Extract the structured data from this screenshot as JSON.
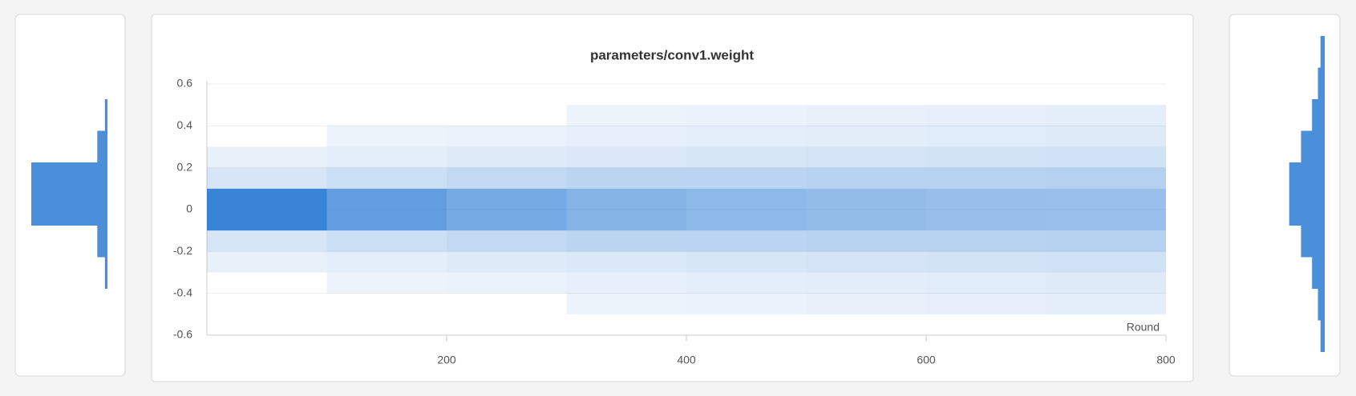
{
  "chart_data": {
    "type": "heatmap",
    "title": "parameters/conv1.weight",
    "x_label": "Round",
    "x": [
      0,
      100,
      200,
      300,
      400,
      500,
      600,
      700,
      800
    ],
    "y_bins": [
      -0.5,
      -0.4,
      -0.3,
      -0.2,
      -0.1,
      0,
      0.1,
      0.2,
      0.3,
      0.4,
      0.5
    ],
    "values": [
      [
        0,
        0,
        3,
        12,
        90,
        90,
        12,
        3,
        0,
        0
      ],
      [
        0,
        1,
        5,
        18,
        70,
        70,
        18,
        5,
        1,
        0
      ],
      [
        0,
        2,
        8,
        22,
        60,
        60,
        22,
        8,
        2,
        0
      ],
      [
        1,
        4,
        10,
        25,
        52,
        52,
        25,
        10,
        4,
        1
      ],
      [
        2,
        5,
        12,
        26,
        48,
        48,
        26,
        12,
        5,
        2
      ],
      [
        3,
        6,
        13,
        27,
        45,
        45,
        27,
        13,
        6,
        3
      ],
      [
        4,
        7,
        14,
        27,
        43,
        43,
        27,
        14,
        7,
        4
      ],
      [
        5,
        8,
        15,
        28,
        42,
        42,
        28,
        15,
        8,
        5
      ]
    ],
    "color": "#2a7bd4",
    "xlim": [
      0,
      800
    ],
    "xticks": [
      200,
      400,
      600,
      800
    ],
    "ylim": [
      -0.6,
      0.6
    ],
    "yticks": [
      -0.6,
      -0.4,
      -0.2,
      0,
      0.2,
      0.4,
      0.6
    ],
    "grid": true
  }
}
